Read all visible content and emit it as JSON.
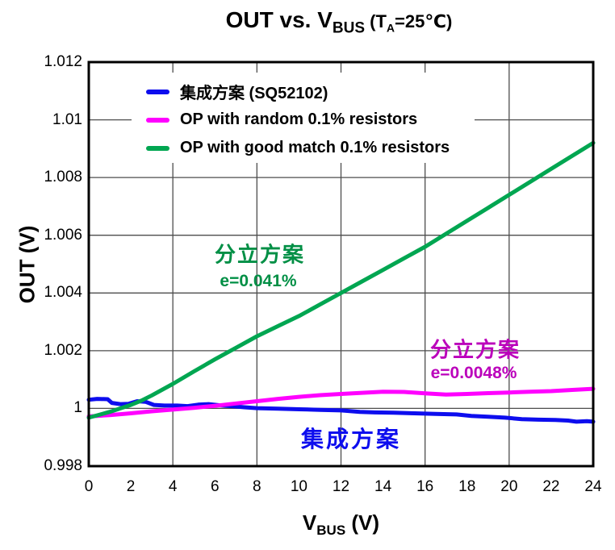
{
  "title": {
    "main": "OUT vs. V",
    "main_sub": "BUS",
    "cond_pre": " (T",
    "cond_sub": "A",
    "cond_post": "=25℃)"
  },
  "yaxis": {
    "label": "OUT (V)"
  },
  "xaxis": {
    "pre": "V",
    "sub": "BUS",
    "post": " (V)"
  },
  "legend": {
    "items": [
      {
        "label": "集成方案 (SQ52102)"
      },
      {
        "label": "OP with random 0.1% resistors"
      },
      {
        "label": "OP with good match 0.1% resistors"
      }
    ]
  },
  "annotations": {
    "green_title": {
      "text": "分立方案",
      "color": "#008F45"
    },
    "green_value": {
      "text": "e=0.041%",
      "color": "#008F45"
    },
    "magenta_title": {
      "text": "分立方案",
      "color": "#BB00BB"
    },
    "magenta_value": {
      "text": "e=0.0048%",
      "color": "#BB00BB"
    },
    "blue_title": {
      "text": "集成方案",
      "color": "#0D0DEE"
    }
  },
  "chart_data": {
    "type": "line",
    "title": "OUT vs. VBUS (TA=25℃)",
    "xlabel": "VBUS (V)",
    "ylabel": "OUT (V)",
    "xlim": [
      0,
      24
    ],
    "ylim": [
      0.998,
      1.012
    ],
    "grid": {
      "v_lines": [
        4,
        8,
        12,
        16,
        20
      ],
      "h_lines": [
        1.0,
        1.002,
        1.004,
        1.006,
        1.008,
        1.01
      ]
    },
    "x_ticks": [
      {
        "v": 0,
        "label": "0"
      },
      {
        "v": 2,
        "label": "2"
      },
      {
        "v": 4,
        "label": "4"
      },
      {
        "v": 6,
        "label": "6"
      },
      {
        "v": 8,
        "label": "8"
      },
      {
        "v": 10,
        "label": "10"
      },
      {
        "v": 12,
        "label": "12"
      },
      {
        "v": 14,
        "label": "14"
      },
      {
        "v": 16,
        "label": "16"
      },
      {
        "v": 18,
        "label": "18"
      },
      {
        "v": 20,
        "label": "20"
      },
      {
        "v": 22,
        "label": "22"
      },
      {
        "v": 24,
        "label": "24"
      }
    ],
    "y_ticks": [
      {
        "v": 1.012,
        "label": "1.012"
      },
      {
        "v": 1.01,
        "label": "1.01"
      },
      {
        "v": 1.008,
        "label": "1.008"
      },
      {
        "v": 1.006,
        "label": "1.006"
      },
      {
        "v": 1.004,
        "label": "1.004"
      },
      {
        "v": 1.002,
        "label": "1.002"
      },
      {
        "v": 1,
        "label": "1"
      },
      {
        "v": 0.998,
        "label": "0.998"
      }
    ],
    "series": [
      {
        "name": "集成方案 (SQ52102)",
        "color": "#0D0DEE",
        "error_note": "",
        "points": [
          [
            0,
            1.0003
          ],
          [
            0.4,
            1.00033
          ],
          [
            0.9,
            1.00032
          ],
          [
            1.1,
            1.00019
          ],
          [
            1.5,
            1.00015
          ],
          [
            1.9,
            1.00016
          ],
          [
            2.3,
            1.00025
          ],
          [
            2.7,
            1.00023
          ],
          [
            3.1,
            1.00012
          ],
          [
            3.6,
            1.0001
          ],
          [
            4.2,
            1.0001
          ],
          [
            4.7,
            1.00008
          ],
          [
            5.2,
            1.00013
          ],
          [
            5.7,
            1.00015
          ],
          [
            6.2,
            1.00011
          ],
          [
            6.8,
            1.00008
          ],
          [
            7.4,
            1.00004
          ],
          [
            8,
            1.00001
          ],
          [
            9,
            0.99999
          ],
          [
            10,
            0.99997
          ],
          [
            11,
            0.99995
          ],
          [
            12,
            0.99993
          ],
          [
            12.9,
            0.99988
          ],
          [
            13.6,
            0.99986
          ],
          [
            14.5,
            0.99985
          ],
          [
            15.5,
            0.99983
          ],
          [
            16.5,
            0.99981
          ],
          [
            17.5,
            0.99979
          ],
          [
            18.2,
            0.99974
          ],
          [
            19,
            0.99971
          ],
          [
            19.8,
            0.99968
          ],
          [
            20.6,
            0.99963
          ],
          [
            21.4,
            0.99961
          ],
          [
            22.2,
            0.9996
          ],
          [
            22.8,
            0.99958
          ],
          [
            23.2,
            0.99954
          ],
          [
            23.7,
            0.99956
          ],
          [
            24,
            0.99954
          ]
        ]
      },
      {
        "name": "OP with random 0.1% resistors",
        "color": "#FF00FF",
        "error_note": "e=0.0048%",
        "points": [
          [
            0,
            0.99972
          ],
          [
            1,
            0.99977
          ],
          [
            2,
            0.99983
          ],
          [
            3,
            0.9999
          ],
          [
            4,
            0.99996
          ],
          [
            5,
            1.00002
          ],
          [
            6,
            1.00009
          ],
          [
            7,
            1.00017
          ],
          [
            8,
            1.00025
          ],
          [
            9,
            1.00033
          ],
          [
            10,
            1.0004
          ],
          [
            11,
            1.00046
          ],
          [
            12,
            1.0005
          ],
          [
            13,
            1.00054
          ],
          [
            14,
            1.00058
          ],
          [
            15,
            1.00057
          ],
          [
            16,
            1.00052
          ],
          [
            17,
            1.00048
          ],
          [
            18,
            1.0005
          ],
          [
            19,
            1.00053
          ],
          [
            20,
            1.00055
          ],
          [
            21,
            1.00058
          ],
          [
            22,
            1.0006
          ],
          [
            23,
            1.00064
          ],
          [
            24,
            1.00068
          ]
        ]
      },
      {
        "name": "OP with good match 0.1% resistors",
        "color": "#00A651",
        "error_note": "e=0.041%",
        "points": [
          [
            0,
            0.99968
          ],
          [
            1,
            0.99988
          ],
          [
            2,
            1.00012
          ],
          [
            2.5,
            1.00027
          ],
          [
            3,
            1.00045
          ],
          [
            4,
            1.00085
          ],
          [
            5,
            1.00128
          ],
          [
            6,
            1.0017
          ],
          [
            7,
            1.0021
          ],
          [
            8,
            1.0025
          ],
          [
            9,
            1.00285
          ],
          [
            10,
            1.0032
          ],
          [
            11,
            1.0036
          ],
          [
            12,
            1.004
          ],
          [
            13,
            1.0044
          ],
          [
            14,
            1.0048
          ],
          [
            15,
            1.0052
          ],
          [
            16,
            1.0056
          ],
          [
            17,
            1.00605
          ],
          [
            18,
            1.0065
          ],
          [
            19,
            1.00695
          ],
          [
            20,
            1.0074
          ],
          [
            21,
            1.00785
          ],
          [
            22,
            1.0083
          ],
          [
            23,
            1.00875
          ],
          [
            24,
            1.0092
          ]
        ]
      }
    ]
  }
}
